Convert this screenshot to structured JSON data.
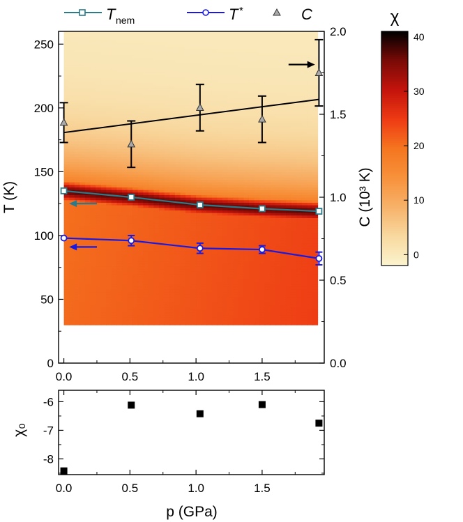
{
  "chart_data": [
    {
      "type": "heatmap+line+scatter",
      "xlabel": "p (GPa)",
      "ylabel_left": "T (K)",
      "ylabel_right": "C (10³ K)",
      "xlim": [
        -0.04,
        1.97
      ],
      "ylim_left": [
        0,
        260
      ],
      "ylim_right": [
        0,
        2.0
      ],
      "xticks": [
        "0.0",
        "0.5",
        "1.0",
        "1.5"
      ],
      "yticks_left": [
        "0",
        "50",
        "100",
        "150",
        "200",
        "250"
      ],
      "yticks_right": [
        "0.0",
        "0.5",
        "1.0",
        "1.5",
        "2.0"
      ],
      "legend": {
        "placement": "top",
        "entries": [
          {
            "label_main": "T",
            "label_sub": "nem",
            "marker": "square"
          },
          {
            "label_main": "T",
            "label_sup": "*",
            "marker": "circle"
          },
          {
            "label_main": "C",
            "marker": "triangle"
          }
        ]
      },
      "colorbar": {
        "title": "χ",
        "ticks": [
          "0",
          "10",
          "20",
          "30",
          "40"
        ],
        "range": [
          -2,
          41
        ],
        "colormap": [
          "#fbf4cf",
          "#f8d9a0",
          "#f7b26a",
          "#f7923c",
          "#f5761f",
          "#ee3b14",
          "#c4140c",
          "#7a0a07",
          "#000000"
        ]
      },
      "heatmap": {
        "x_range": [
          0,
          1.92
        ],
        "y_range": [
          30,
          260
        ],
        "description_peak_band": "maximum along T_nem line"
      },
      "series": [
        {
          "name": "T_nem",
          "axis": "left",
          "color": "#2a7a8a",
          "marker": "square",
          "x": [
            0.0,
            0.51,
            1.03,
            1.5,
            1.93
          ],
          "y": [
            135,
            130,
            124,
            121,
            119
          ]
        },
        {
          "name": "T*",
          "axis": "left",
          "color": "#1a1adf",
          "marker": "circle",
          "x": [
            0.0,
            0.51,
            1.03,
            1.5,
            1.93
          ],
          "y": [
            98,
            96,
            90,
            89,
            82
          ],
          "yerr": [
            1,
            4,
            4,
            3,
            5
          ]
        },
        {
          "name": "C",
          "axis": "right",
          "color": "#000000",
          "marker": "triangle",
          "x": [
            0.0,
            0.51,
            1.03,
            1.5,
            1.93
          ],
          "y": [
            1.45,
            1.32,
            1.54,
            1.47,
            1.75
          ],
          "yerr": [
            0.12,
            0.14,
            0.14,
            0.14,
            0.2
          ],
          "fit_line": {
            "x": [
              0.0,
              1.93
            ],
            "y": [
              1.39,
              1.59
            ]
          }
        }
      ],
      "arrows": [
        {
          "points_to": "left",
          "series": "T_nem",
          "x": [
            0.25,
            0.04
          ],
          "y": [
            125,
            125
          ]
        },
        {
          "points_to": "left",
          "series": "T*",
          "x": [
            0.25,
            0.04
          ],
          "y": [
            91,
            91
          ]
        },
        {
          "points_to": "right",
          "series": "C",
          "x": [
            1.7,
            1.9
          ],
          "y": [
            1.8,
            1.8
          ]
        }
      ]
    },
    {
      "type": "scatter",
      "xlabel": "p (GPa)",
      "ylabel": "χ₀",
      "xlim": [
        -0.04,
        1.97
      ],
      "ylim": [
        -8.55,
        -5.6
      ],
      "xticks": [
        "0.0",
        "0.5",
        "1.0",
        "1.5"
      ],
      "yticks": [
        "-8",
        "-7",
        "-6"
      ],
      "series": [
        {
          "name": "χ0",
          "marker": "square",
          "color": "#000000",
          "x": [
            0.0,
            0.51,
            1.03,
            1.5,
            1.93
          ],
          "y": [
            -8.42,
            -6.12,
            -6.42,
            -6.1,
            -6.75
          ]
        }
      ]
    }
  ]
}
